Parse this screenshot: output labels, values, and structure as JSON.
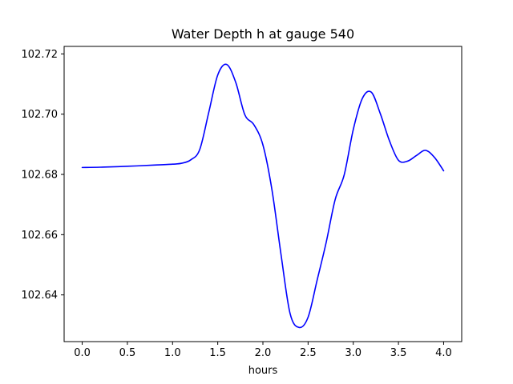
{
  "chart_data": {
    "type": "line",
    "title": "Water Depth h at gauge 540",
    "xlabel": "hours",
    "ylabel": "",
    "xlim": [
      -0.2,
      4.2
    ],
    "ylim": [
      102.6245,
      102.7225
    ],
    "xticks": [
      0.0,
      0.5,
      1.0,
      1.5,
      2.0,
      2.5,
      3.0,
      3.5,
      4.0
    ],
    "xtick_labels": [
      "0.0",
      "0.5",
      "1.0",
      "1.5",
      "2.0",
      "2.5",
      "3.0",
      "3.5",
      "4.0"
    ],
    "yticks": [
      102.64,
      102.66,
      102.68,
      102.7,
      102.72
    ],
    "ytick_labels": [
      "102.64",
      "102.66",
      "102.68",
      "102.70",
      "102.72"
    ],
    "grid": false,
    "legend": "none",
    "series": [
      {
        "color": "#0000ff",
        "x": [
          0.0,
          0.2,
          0.5,
          0.8,
          1.0,
          1.1,
          1.2,
          1.3,
          1.4,
          1.5,
          1.6,
          1.7,
          1.8,
          1.9,
          2.0,
          2.1,
          2.2,
          2.3,
          2.4,
          2.5,
          2.6,
          2.7,
          2.8,
          2.9,
          3.0,
          3.1,
          3.2,
          3.3,
          3.4,
          3.5,
          3.6,
          3.7,
          3.8,
          3.9,
          4.0
        ],
        "y": [
          102.6823,
          102.6824,
          102.6827,
          102.6831,
          102.6834,
          102.6837,
          102.6848,
          102.6882,
          102.7005,
          102.713,
          102.7165,
          102.7105,
          102.6998,
          102.6965,
          102.6898,
          102.6749,
          102.6535,
          102.6339,
          102.6292,
          102.6326,
          102.6449,
          102.6574,
          102.6717,
          102.6799,
          102.6949,
          102.7052,
          102.7073,
          102.7001,
          102.6912,
          102.6847,
          102.6844,
          102.6863,
          102.688,
          102.6856,
          102.6812
        ]
      }
    ]
  }
}
